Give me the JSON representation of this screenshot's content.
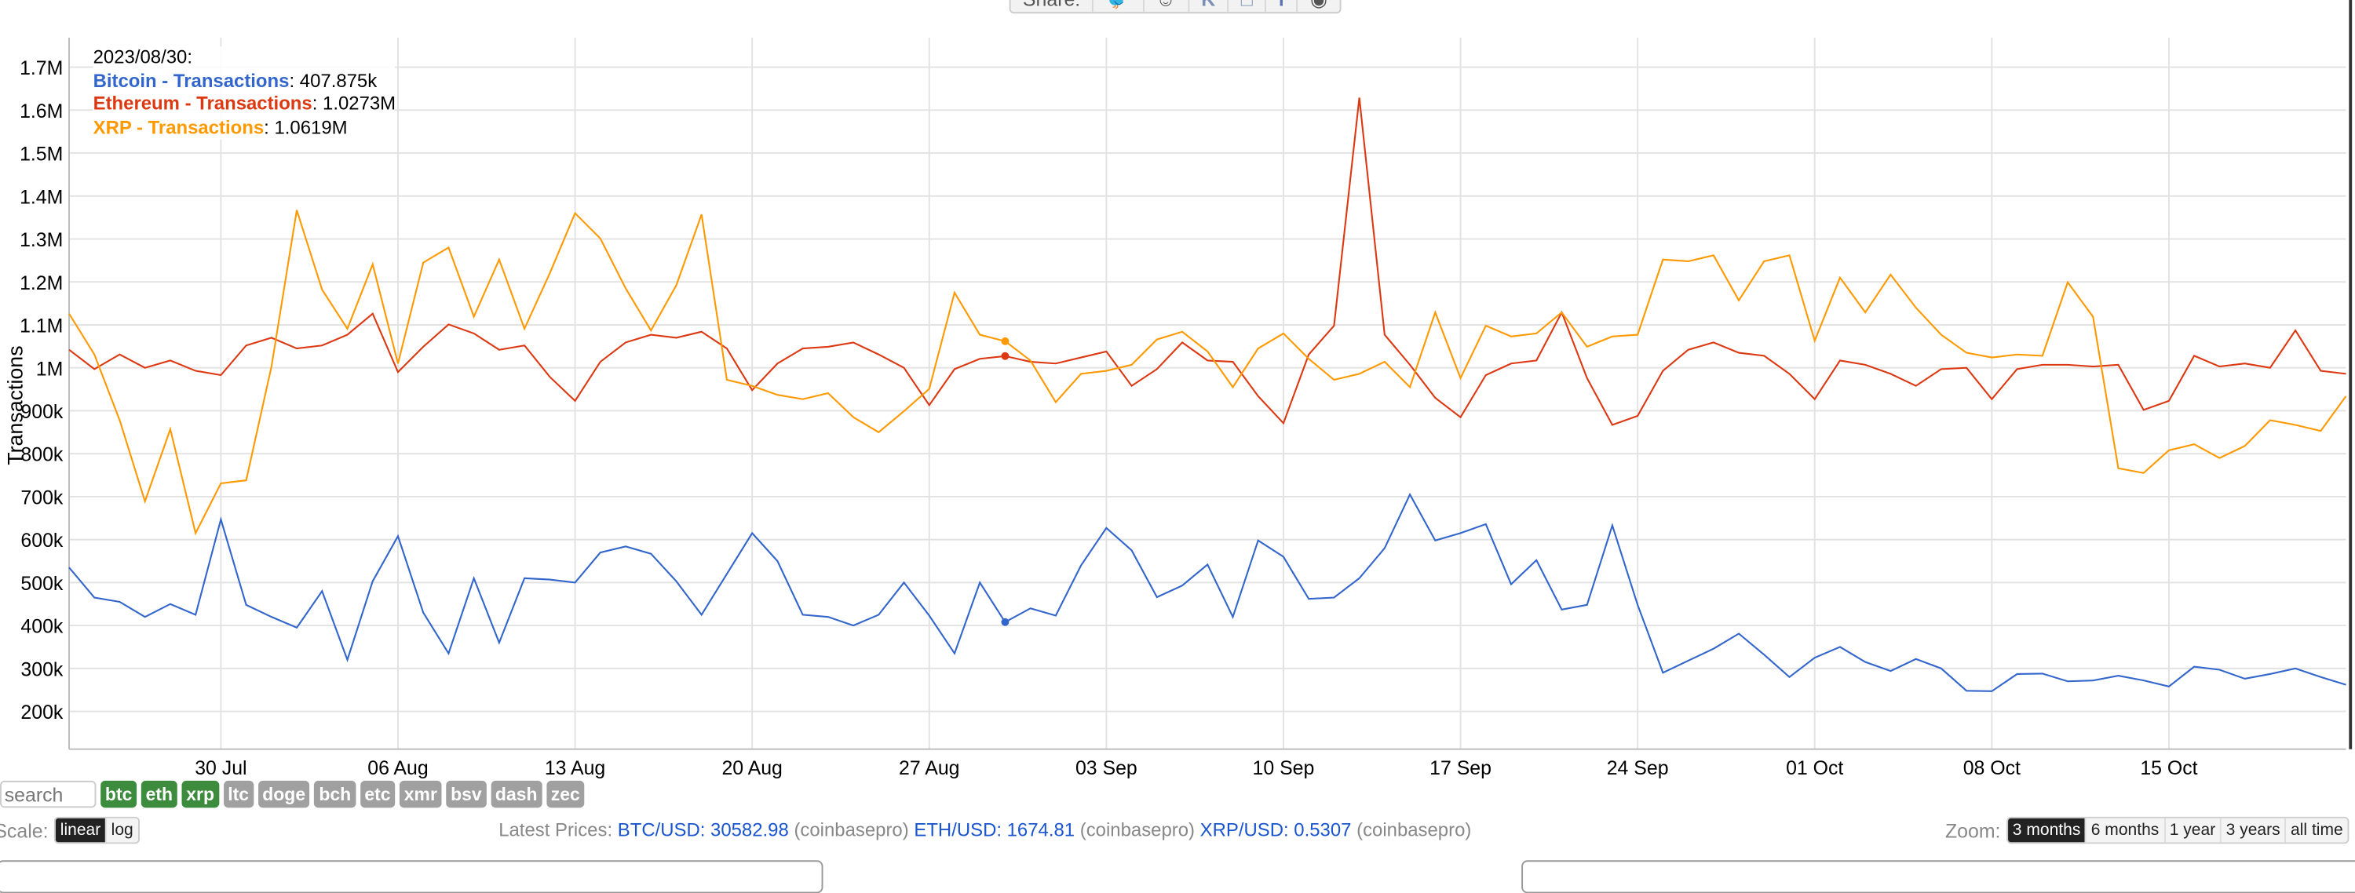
{
  "share": {
    "label": "Share:",
    "icons": [
      "twitter-icon",
      "reddit-icon",
      "vk-icon",
      "clipboard-icon",
      "facebook-icon",
      "eye-icon"
    ]
  },
  "tooltip": {
    "date": "2023/08/30:",
    "rows": [
      {
        "name": "Bitcoin - Transactions",
        "value": "407.875k",
        "color": "#3366cc"
      },
      {
        "name": "Ethereum - Transactions",
        "value": "1.0273M",
        "color": "#dc3912"
      },
      {
        "name": "XRP - Transactions",
        "value": "1.0619M",
        "color": "#ff9900"
      }
    ]
  },
  "chart_data": {
    "type": "line",
    "ylabel": "Transactions",
    "ylim": [
      112000,
      1769000
    ],
    "xlim": [
      "2023-07-24",
      "2023-10-22"
    ],
    "grid": true,
    "yticks": [
      {
        "v": 200000,
        "label": "200k"
      },
      {
        "v": 300000,
        "label": "300k"
      },
      {
        "v": 400000,
        "label": "400k"
      },
      {
        "v": 500000,
        "label": "500k"
      },
      {
        "v": 600000,
        "label": "600k"
      },
      {
        "v": 700000,
        "label": "700k"
      },
      {
        "v": 800000,
        "label": "800k"
      },
      {
        "v": 900000,
        "label": "900k"
      },
      {
        "v": 1000000,
        "label": "1M"
      },
      {
        "v": 1100000,
        "label": "1.1M"
      },
      {
        "v": 1200000,
        "label": "1.2M"
      },
      {
        "v": 1300000,
        "label": "1.3M"
      },
      {
        "v": 1400000,
        "label": "1.4M"
      },
      {
        "v": 1500000,
        "label": "1.5M"
      },
      {
        "v": 1600000,
        "label": "1.6M"
      },
      {
        "v": 1700000,
        "label": "1.7M"
      }
    ],
    "xticks": [
      {
        "d": "2023-07-30",
        "label": "30 Jul"
      },
      {
        "d": "2023-08-06",
        "label": "06 Aug"
      },
      {
        "d": "2023-08-13",
        "label": "13 Aug"
      },
      {
        "d": "2023-08-20",
        "label": "20 Aug"
      },
      {
        "d": "2023-08-27",
        "label": "27 Aug"
      },
      {
        "d": "2023-09-03",
        "label": "03 Sep"
      },
      {
        "d": "2023-09-10",
        "label": "10 Sep"
      },
      {
        "d": "2023-09-17",
        "label": "17 Sep"
      },
      {
        "d": "2023-09-24",
        "label": "24 Sep"
      },
      {
        "d": "2023-10-01",
        "label": "01 Oct"
      },
      {
        "d": "2023-10-08",
        "label": "08 Oct"
      },
      {
        "d": "2023-10-15",
        "label": "15 Oct"
      }
    ],
    "x_start": "2023-07-24",
    "x_step": "1 day",
    "highlight_date": "2023-08-30",
    "series": [
      {
        "name": "Bitcoin - Transactions",
        "color": "#3366cc",
        "values": [
          535,
          465,
          455,
          420,
          450,
          425,
          647,
          448,
          420,
          395,
          480,
          320,
          503,
          608,
          430,
          335,
          510,
          360,
          510,
          507,
          500,
          570,
          584,
          567,
          503,
          425,
          520,
          615,
          550,
          425,
          420,
          400,
          425,
          500,
          423,
          335,
          500,
          407.875,
          440,
          423,
          540,
          627,
          575,
          466,
          493,
          542,
          420,
          598,
          560,
          462,
          465,
          510,
          580,
          705,
          598,
          615,
          636,
          496,
          552,
          437,
          448,
          633,
          448,
          290,
          318,
          346,
          381,
          332,
          280,
          325,
          350,
          315,
          294,
          322,
          300,
          248,
          247,
          287,
          288,
          270,
          272,
          283,
          272,
          258,
          304,
          297,
          276,
          287,
          300,
          280,
          262
        ]
      },
      {
        "name": "Ethereum - Transactions",
        "color": "#dc3912",
        "values": [
          1042,
          997,
          1031,
          1000,
          1017,
          993,
          983,
          1052,
          1070,
          1045,
          1052,
          1077,
          1126,
          990,
          1049,
          1101,
          1080,
          1042,
          1052,
          979,
          923,
          1014,
          1059,
          1077,
          1070,
          1084,
          1045,
          948,
          1010,
          1045,
          1049,
          1059,
          1031,
          1000,
          913,
          997,
          1021,
          1027.3,
          1014,
          1010,
          1024,
          1038,
          958,
          997,
          1059,
          1017,
          1014,
          934,
          871,
          1031,
          1098,
          1629,
          1077,
          1007,
          930,
          885,
          983,
          1010,
          1017,
          1129,
          976,
          867,
          888,
          993,
          1042,
          1059,
          1035,
          1028,
          986,
          927,
          1017,
          1007,
          986,
          958,
          997,
          1000,
          927,
          997,
          1007,
          1007,
          1003,
          1007,
          902,
          923,
          1028,
          1003,
          1010,
          1000,
          1087,
          993,
          986
        ]
      },
      {
        "name": "XRP - Transactions",
        "color": "#ff9900",
        "values": [
          1126,
          1031,
          878,
          689,
          857,
          615,
          731,
          738,
          1003,
          1367,
          1182,
          1091,
          1241,
          1010,
          1245,
          1280,
          1119,
          1252,
          1091,
          1220,
          1360,
          1301,
          1185,
          1087,
          1192,
          1357,
          972,
          958,
          937,
          927,
          941,
          885,
          850,
          899,
          951,
          1175,
          1077,
          1061.9,
          1017,
          920,
          986,
          993,
          1007,
          1066,
          1084,
          1038,
          955,
          1045,
          1080,
          1021,
          972,
          986,
          1014,
          955,
          1129,
          976,
          1098,
          1073,
          1080,
          1129,
          1049,
          1073,
          1077,
          1252,
          1248,
          1262,
          1157,
          1248,
          1262,
          1063,
          1210,
          1129,
          1217,
          1140,
          1077,
          1035,
          1024,
          1031,
          1028,
          1199,
          1119,
          766,
          755,
          808,
          822,
          790,
          818,
          878,
          867,
          853,
          934
        ]
      }
    ],
    "value_unit": "thousands"
  },
  "controls": {
    "search_placeholder": "search",
    "chips": [
      {
        "label": "btc",
        "on": true
      },
      {
        "label": "eth",
        "on": true
      },
      {
        "label": "xrp",
        "on": true
      },
      {
        "label": "ltc",
        "on": false
      },
      {
        "label": "doge",
        "on": false
      },
      {
        "label": "bch",
        "on": false
      },
      {
        "label": "etc",
        "on": false
      },
      {
        "label": "xmr",
        "on": false
      },
      {
        "label": "bsv",
        "on": false
      },
      {
        "label": "dash",
        "on": false
      },
      {
        "label": "zec",
        "on": false
      }
    ]
  },
  "scale": {
    "label": "Scale:",
    "options": [
      "linear",
      "log"
    ],
    "active": "linear"
  },
  "prices": {
    "label": "Latest Prices:",
    "items": [
      {
        "pair": "BTC/USD: 30582.98",
        "src": "(coinbasepro)"
      },
      {
        "pair": "ETH/USD: 1674.81",
        "src": "(coinbasepro)"
      },
      {
        "pair": "XRP/USD: 0.5307",
        "src": "(coinbasepro)"
      }
    ]
  },
  "zoom": {
    "label": "Zoom:",
    "options": [
      "3 months",
      "6 months",
      "1 year",
      "3 years",
      "all time"
    ],
    "active": "3 months"
  }
}
